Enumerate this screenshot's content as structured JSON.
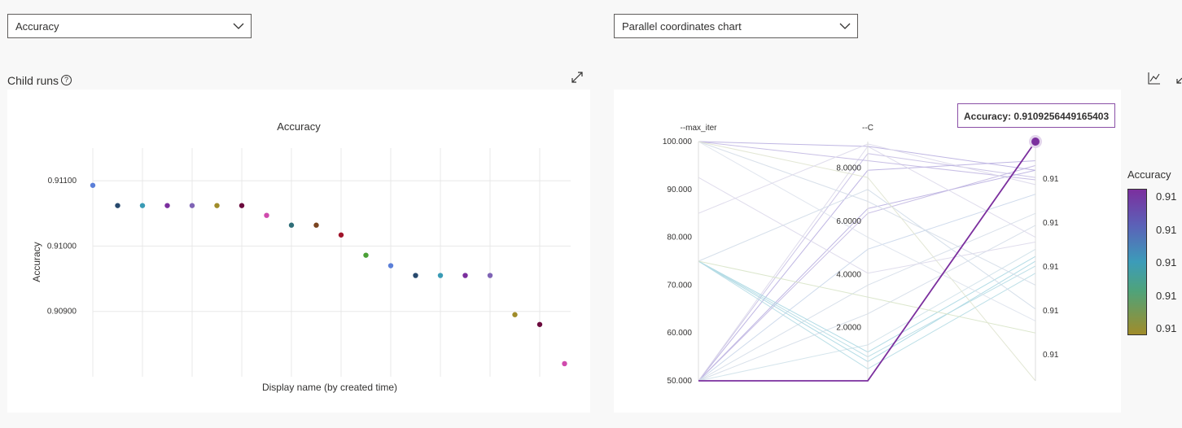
{
  "left_dropdown": {
    "value": "Accuracy"
  },
  "right_dropdown": {
    "value": "Parallel coordinates chart"
  },
  "child_runs": {
    "title": "Child runs",
    "help": "?"
  },
  "tooltip": {
    "text": "Accuracy: 0.9109256449165403"
  },
  "legend": {
    "title": "Accuracy",
    "ticks": [
      "0.91",
      "0.91",
      "0.91",
      "0.91",
      "0.91"
    ]
  },
  "chart_data": [
    {
      "type": "scatter",
      "title": "Accuracy",
      "xlabel": "Display name (by created time)",
      "ylabel": "Accuracy",
      "y_ticks": [
        "0.91100",
        "0.91000",
        "0.90900"
      ],
      "ylim": [
        0.908,
        0.9115
      ],
      "grid": true,
      "points": [
        {
          "y": 0.91093,
          "color": "#5b7fd8"
        },
        {
          "y": 0.91062,
          "color": "#27496d"
        },
        {
          "y": 0.91062,
          "color": "#3a9bb5"
        },
        {
          "y": 0.91062,
          "color": "#7b2f9e"
        },
        {
          "y": 0.91062,
          "color": "#7f64b5"
        },
        {
          "y": 0.91062,
          "color": "#a08c2a"
        },
        {
          "y": 0.91062,
          "color": "#6b0a3d"
        },
        {
          "y": 0.91047,
          "color": "#d04aad"
        },
        {
          "y": 0.91032,
          "color": "#2f6e78"
        },
        {
          "y": 0.91032,
          "color": "#7a4420"
        },
        {
          "y": 0.91017,
          "color": "#a0142a"
        },
        {
          "y": 0.90986,
          "color": "#4aa036"
        },
        {
          "y": 0.9097,
          "color": "#5b7fd8"
        },
        {
          "y": 0.90955,
          "color": "#27496d"
        },
        {
          "y": 0.90955,
          "color": "#3a9bb5"
        },
        {
          "y": 0.90955,
          "color": "#7b2f9e"
        },
        {
          "y": 0.90955,
          "color": "#7f64b5"
        },
        {
          "y": 0.90895,
          "color": "#a08c2a"
        },
        {
          "y": 0.9088,
          "color": "#6b0a3d"
        },
        {
          "y": 0.9082,
          "color": "#d04aad"
        }
      ]
    },
    {
      "type": "parallel_coordinates",
      "axes": [
        {
          "name": "--max_iter",
          "ticks": [
            "100.000",
            "90.000",
            "80.000",
            "70.000",
            "60.000",
            "50.000"
          ],
          "range": [
            50,
            100
          ]
        },
        {
          "name": "--C",
          "ticks": [
            "8.0000",
            "6.0000",
            "4.0000",
            "2.0000"
          ],
          "range": [
            0,
            9
          ]
        },
        {
          "name": "Accuracy",
          "ticks": [
            "0.91",
            "0.91",
            "0.91",
            "0.91",
            "0.91"
          ]
        }
      ],
      "lines": [
        {
          "v": [
            0.0,
            0.95,
            0.85
          ],
          "color": "#c8c0e4"
        },
        {
          "v": [
            0.0,
            0.88,
            0.92
          ],
          "color": "#b8aee0"
        },
        {
          "v": [
            0.0,
            0.72,
            0.88
          ],
          "color": "#b8aee0"
        },
        {
          "v": [
            0.0,
            0.7,
            0.9
          ],
          "color": "#c2b8e2"
        },
        {
          "v": [
            0.0,
            0.55,
            0.78
          ],
          "color": "#c9d6ea"
        },
        {
          "v": [
            0.0,
            0.4,
            0.7
          ],
          "color": "#d4dde8"
        },
        {
          "v": [
            0.0,
            0.28,
            0.65
          ],
          "color": "#d4dde8"
        },
        {
          "v": [
            0.0,
            0.15,
            0.55
          ],
          "color": "#d0e2ea"
        },
        {
          "v": [
            0.0,
            0.98,
            0.6
          ],
          "color": "#dcd8ea"
        },
        {
          "v": [
            0.5,
            0.12,
            0.52
          ],
          "color": "#a9d7e2"
        },
        {
          "v": [
            0.5,
            0.08,
            0.5
          ],
          "color": "#a9d7e2"
        },
        {
          "v": [
            0.5,
            0.1,
            0.48
          ],
          "color": "#b5dbe4"
        },
        {
          "v": [
            0.5,
            0.05,
            0.45
          ],
          "color": "#b5dbe4"
        },
        {
          "v": [
            0.5,
            0.8,
            0.3
          ],
          "color": "#d0dbe8"
        },
        {
          "v": [
            0.5,
            0.35,
            0.2
          ],
          "color": "#d8e4c8"
        },
        {
          "v": [
            1.0,
            0.98,
            0.88
          ],
          "color": "#b8aee0"
        },
        {
          "v": [
            1.0,
            0.92,
            0.84
          ],
          "color": "#c2b8e2"
        },
        {
          "v": [
            1.0,
            0.75,
            0.4
          ],
          "color": "#d4dde8"
        },
        {
          "v": [
            1.0,
            0.6,
            0.25
          ],
          "color": "#dde2ec"
        },
        {
          "v": [
            1.0,
            0.85,
            0.0
          ],
          "color": "#e0e4d0"
        },
        {
          "v": [
            0.7,
            0.99,
            0.82
          ],
          "color": "#dcd8ea"
        },
        {
          "v": [
            0.85,
            0.45,
            0.58
          ],
          "color": "#dcd8ea"
        }
      ],
      "highlight": {
        "v": [
          0.0,
          0.0,
          1.0
        ],
        "color": "#7b2f9e"
      }
    }
  ]
}
